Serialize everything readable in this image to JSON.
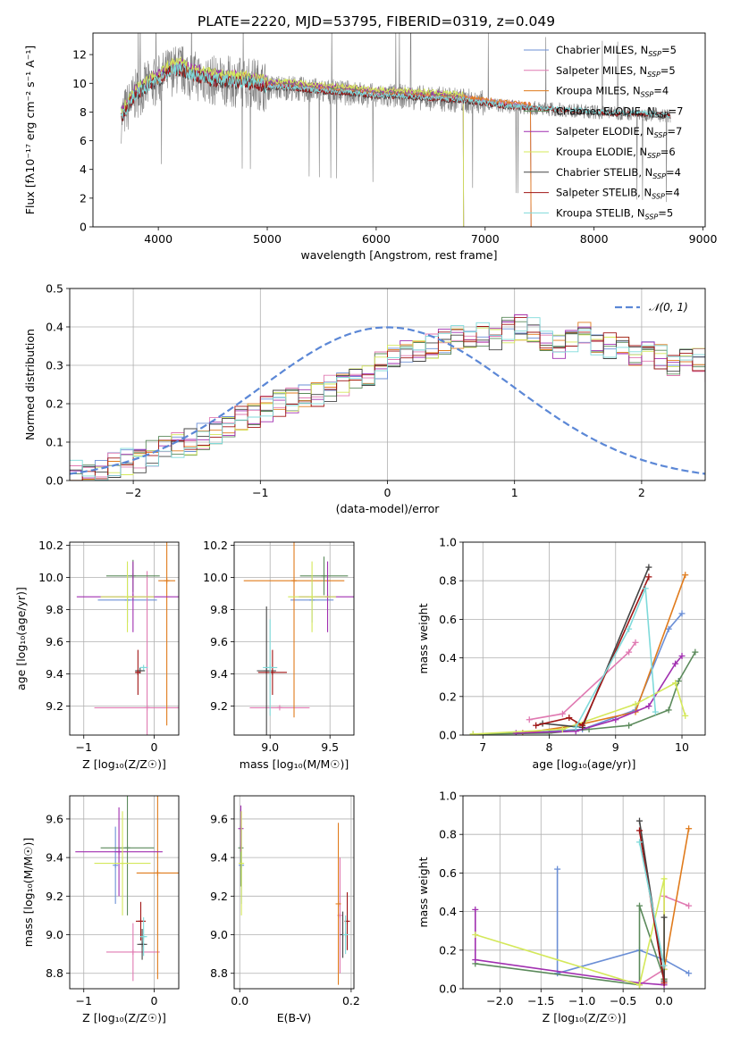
{
  "colors": {
    "Chabrier MILES": "#6b8fd6",
    "Salpeter MILES": "#e07ab2",
    "Kroupa MILES": "#e07b1c",
    "Chabrier ELODIE": "#5b8a5b",
    "Salpeter ELODIE": "#a12fb0",
    "Kroupa ELODIE": "#d4e85a",
    "Chabrier STELIB": "#444444",
    "Salpeter STELIB": "#a01515",
    "Kroupa STELIB": "#7fdada",
    "data": "#808080",
    "normal": "#5b87d6"
  },
  "chart_data": [
    {
      "type": "line",
      "title": "PLATE=2220, MJD=53795, FIBERID=0319, z=0.049",
      "xlabel": "wavelength [Angstrom, rest frame]",
      "ylabel": "Flux [fλ10⁻¹⁷ erg cm⁻² s⁻¹ A⁻¹]",
      "xlim": [
        3400,
        9020
      ],
      "ylim": [
        0,
        13.5
      ],
      "xticks": [
        4000,
        5000,
        6000,
        7000,
        8000,
        9000
      ],
      "yticks": [
        0,
        2,
        4,
        6,
        8,
        10,
        12
      ],
      "grid": false,
      "legend_position": "top-right",
      "legend": [
        {
          "label": "Chabrier MILES, N",
          "sub": "SSP",
          "eq": "=5",
          "color_key": "Chabrier MILES"
        },
        {
          "label": "Salpeter MILES, N",
          "sub": "SSP",
          "eq": "=5",
          "color_key": "Salpeter MILES"
        },
        {
          "label": "Kroupa MILES, N",
          "sub": "SSP",
          "eq": "=4",
          "color_key": "Kroupa MILES"
        },
        {
          "label": "Chabrier ELODIE, N",
          "sub": "SSP",
          "eq": "=7",
          "color_key": "Chabrier ELODIE"
        },
        {
          "label": "Salpeter ELODIE, N",
          "sub": "SSP",
          "eq": "=7",
          "color_key": "Salpeter ELODIE"
        },
        {
          "label": "Kroupa ELODIE, N",
          "sub": "SSP",
          "eq": "=6",
          "color_key": "Kroupa ELODIE"
        },
        {
          "label": "Chabrier STELIB, N",
          "sub": "SSP",
          "eq": "=4",
          "color_key": "Chabrier STELIB"
        },
        {
          "label": "Salpeter STELIB, N",
          "sub": "SSP",
          "eq": "=4",
          "color_key": "Salpeter STELIB"
        },
        {
          "label": "Kroupa STELIB, N",
          "sub": "SSP",
          "eq": "=5",
          "color_key": "Kroupa STELIB"
        }
      ],
      "data_envelope": {
        "x": [
          3660,
          3800,
          3900,
          4000,
          4100,
          4200,
          4300,
          4400,
          4500,
          4700,
          4900,
          5000,
          5200,
          5400,
          5600,
          5800,
          6000,
          6200,
          6400,
          6600,
          6800,
          7000,
          7200,
          7400,
          7600,
          7800,
          8000,
          8200,
          8400,
          8600,
          8700
        ],
        "y": [
          7.6,
          9.3,
          9.8,
          10.2,
          10.8,
          11.0,
          10.6,
          10.4,
          10.2,
          10.1,
          10.0,
          9.7,
          9.7,
          9.5,
          9.4,
          9.3,
          9.1,
          9.1,
          9.0,
          8.9,
          8.8,
          8.6,
          8.4,
          8.3,
          8.2,
          8.1,
          8.0,
          7.9,
          7.9,
          7.8,
          7.7
        ]
      },
      "model_curves": {
        "MILES": {
          "xmax": 7420,
          "offset": 0.15
        },
        "ELODIE": {
          "xmax": 6800,
          "offset": 0.35
        },
        "STELIB": {
          "xmax": 8700,
          "offset": -0.05
        }
      }
    },
    {
      "type": "histogram",
      "xlabel": "(data-model)/error",
      "ylabel": "Normed distribution",
      "xlim": [
        -2.5,
        2.5
      ],
      "ylim": [
        0,
        0.5
      ],
      "xticks": [
        -2,
        -1,
        0,
        1,
        2
      ],
      "yticks": [
        0.0,
        0.1,
        0.2,
        0.3,
        0.4,
        0.5
      ],
      "grid": true,
      "legend_position": "top-right",
      "legend_label": "𝒩(0, 1)",
      "bin_width": 0.1,
      "bin_start": -2.5,
      "base_values": [
        0.02,
        0.025,
        0.03,
        0.04,
        0.05,
        0.055,
        0.07,
        0.08,
        0.09,
        0.1,
        0.115,
        0.13,
        0.145,
        0.16,
        0.17,
        0.185,
        0.2,
        0.21,
        0.215,
        0.225,
        0.24,
        0.25,
        0.26,
        0.28,
        0.3,
        0.32,
        0.33,
        0.34,
        0.35,
        0.36,
        0.37,
        0.36,
        0.38,
        0.37,
        0.39,
        0.4,
        0.39,
        0.36,
        0.35,
        0.37,
        0.38,
        0.36,
        0.35,
        0.34,
        0.33,
        0.33,
        0.32,
        0.3,
        0.32,
        0.31,
        0.29,
        0.3,
        0.28,
        0.26,
        0.25,
        0.24,
        0.23,
        0.22,
        0.21,
        0.2,
        0.185,
        0.17,
        0.165,
        0.15,
        0.13,
        0.12,
        0.11,
        0.1,
        0.09,
        0.08,
        0.075,
        0.065,
        0.055,
        0.05,
        0.045,
        0.04,
        0.035,
        0.03,
        0.025,
        0.03
      ]
    },
    {
      "type": "errorbar",
      "xlabel": "Z [log₁₀(Z/Z☉)]",
      "ylabel": "age  [log₁₀(age/yr)]",
      "xlim": [
        -1.2,
        0.35
      ],
      "ylim": [
        9.02,
        10.22
      ],
      "xticks": [
        -1,
        0
      ],
      "yticks": [
        9.2,
        9.4,
        9.6,
        9.8,
        10.0,
        10.2
      ],
      "grid": true,
      "points": [
        {
          "m": "Chabrier MILES",
          "x": -0.38,
          "y": 9.86,
          "xerr": 0.42,
          "yerr": 0.14
        },
        {
          "m": "Salpeter MILES",
          "x": -0.1,
          "y": 9.19,
          "xerr": 0.75,
          "yerr": 0.85
        },
        {
          "m": "Kroupa MILES",
          "x": 0.18,
          "y": 9.98,
          "xerr": 0.12,
          "yerr": 0.9
        },
        {
          "m": "Chabrier ELODIE",
          "x": -0.3,
          "y": 10.01,
          "xerr": 0.38,
          "yerr": 0.1
        },
        {
          "m": "Salpeter ELODIE",
          "x": -0.3,
          "y": 9.88,
          "xerr": 0.8,
          "yerr": 0.22
        },
        {
          "m": "Kroupa ELODIE",
          "x": -0.38,
          "y": 9.88,
          "xerr": 0.38,
          "yerr": 0.22
        },
        {
          "m": "Chabrier STELIB",
          "x": -0.2,
          "y": 9.42,
          "xerr": 0.07,
          "yerr": 0.0
        },
        {
          "m": "Salpeter STELIB",
          "x": -0.23,
          "y": 9.41,
          "xerr": 0.04,
          "yerr": 0.14
        },
        {
          "m": "Kroupa STELIB",
          "x": -0.15,
          "y": 9.44,
          "xerr": 0.06,
          "yerr": 0.0
        }
      ]
    },
    {
      "type": "errorbar",
      "xlabel": "mass [log₁₀(M/M☉)]",
      "ylabel": "",
      "xlim": [
        8.7,
        9.7
      ],
      "ylim": [
        9.02,
        10.22
      ],
      "xticks": [
        9.0,
        9.5
      ],
      "yticks": [
        9.2,
        9.4,
        9.6,
        9.8,
        10.0,
        10.2
      ],
      "grid": true,
      "points": [
        {
          "m": "Chabrier MILES",
          "x": 9.35,
          "y": 9.86,
          "xerr": 0.18,
          "yerr": 0.14
        },
        {
          "m": "Salpeter MILES",
          "x": 9.08,
          "y": 9.19,
          "xerr": 0.25,
          "yerr": 0.0
        },
        {
          "m": "Kroupa MILES",
          "x": 9.2,
          "y": 9.98,
          "xerr": 0.42,
          "yerr": 0.85
        },
        {
          "m": "Chabrier ELODIE",
          "x": 9.45,
          "y": 10.01,
          "xerr": 0.2,
          "yerr": 0.12
        },
        {
          "m": "Salpeter ELODIE",
          "x": 9.48,
          "y": 9.88,
          "xerr": 0.24,
          "yerr": 0.22
        },
        {
          "m": "Kroupa ELODIE",
          "x": 9.35,
          "y": 9.88,
          "xerr": 0.2,
          "yerr": 0.22
        },
        {
          "m": "Chabrier STELIB",
          "x": 8.97,
          "y": 9.42,
          "xerr": 0.08,
          "yerr": 0.4
        },
        {
          "m": "Salpeter STELIB",
          "x": 9.02,
          "y": 9.41,
          "xerr": 0.12,
          "yerr": 0.14
        },
        {
          "m": "Kroupa STELIB",
          "x": 9.0,
          "y": 9.44,
          "xerr": 0.06,
          "yerr": 0.3
        }
      ]
    },
    {
      "type": "line",
      "xlabel": "age  [log₁₀(age/yr)]",
      "ylabel": "mass weight",
      "xlim": [
        6.7,
        10.35
      ],
      "ylim": [
        0,
        1
      ],
      "xticks": [
        7,
        8,
        9,
        10
      ],
      "yticks": [
        0.0,
        0.2,
        0.4,
        0.6,
        0.8,
        1.0
      ],
      "grid": true,
      "series": [
        {
          "m": "Chabrier MILES",
          "x": [
            7.6,
            8.5,
            9.3,
            9.8,
            10.0
          ],
          "y": [
            0.01,
            0.03,
            0.13,
            0.55,
            0.63
          ]
        },
        {
          "m": "Salpeter MILES",
          "x": [
            7.7,
            8.2,
            9.2,
            9.3
          ],
          "y": [
            0.08,
            0.11,
            0.43,
            0.48
          ]
        },
        {
          "m": "Kroupa MILES",
          "x": [
            7.6,
            8.4,
            9.3,
            10.05
          ],
          "y": [
            0.01,
            0.05,
            0.12,
            0.83
          ]
        },
        {
          "m": "Chabrier ELODIE",
          "x": [
            6.85,
            8.0,
            8.6,
            9.2,
            9.8,
            9.95,
            10.2
          ],
          "y": [
            0.005,
            0.01,
            0.03,
            0.05,
            0.13,
            0.28,
            0.43
          ]
        },
        {
          "m": "Salpeter ELODIE",
          "x": [
            7.5,
            8.4,
            9.0,
            9.5,
            9.9,
            10.0
          ],
          "y": [
            0.01,
            0.02,
            0.08,
            0.15,
            0.37,
            0.41
          ]
        },
        {
          "m": "Kroupa ELODIE",
          "x": [
            6.85,
            8.2,
            9.3,
            9.9,
            10.05
          ],
          "y": [
            0.005,
            0.03,
            0.16,
            0.27,
            0.1
          ]
        },
        {
          "m": "Chabrier STELIB",
          "x": [
            7.9,
            8.5,
            9.5
          ],
          "y": [
            0.06,
            0.04,
            0.87
          ]
        },
        {
          "m": "Salpeter STELIB",
          "x": [
            7.8,
            8.3,
            8.5,
            9.5
          ],
          "y": [
            0.05,
            0.09,
            0.05,
            0.82
          ]
        },
        {
          "m": "Kroupa STELIB",
          "x": [
            8.4,
            9.2,
            9.45,
            9.6
          ],
          "y": [
            0.04,
            0.55,
            0.76,
            0.12
          ]
        }
      ]
    },
    {
      "type": "errorbar",
      "xlabel": "Z [log₁₀(Z/Z☉)]",
      "ylabel": "mass [log₁₀(M/M☉)]",
      "xlim": [
        -1.2,
        0.35
      ],
      "ylim": [
        8.72,
        9.72
      ],
      "xticks": [
        -1,
        0
      ],
      "yticks": [
        8.8,
        9.0,
        9.2,
        9.4,
        9.6
      ],
      "grid": true,
      "points": [
        {
          "m": "Chabrier MILES",
          "x": -0.55,
          "y": 9.36,
          "xerr": 0.0,
          "yerr": 0.2
        },
        {
          "m": "Salpeter MILES",
          "x": -0.3,
          "y": 8.91,
          "xerr": 0.38,
          "yerr": 0.15
        },
        {
          "m": "Kroupa MILES",
          "x": 0.05,
          "y": 9.32,
          "xerr": 0.3,
          "yerr": 0.55
        },
        {
          "m": "Chabrier ELODIE",
          "x": -0.38,
          "y": 9.45,
          "xerr": 0.38,
          "yerr": 0.35
        },
        {
          "m": "Salpeter ELODIE",
          "x": -0.5,
          "y": 9.43,
          "xerr": 0.62,
          "yerr": 0.23
        },
        {
          "m": "Kroupa ELODIE",
          "x": -0.45,
          "y": 9.37,
          "xerr": 0.4,
          "yerr": 0.27
        },
        {
          "m": "Chabrier STELIB",
          "x": -0.17,
          "y": 8.95,
          "xerr": 0.07,
          "yerr": 0.08
        },
        {
          "m": "Salpeter STELIB",
          "x": -0.19,
          "y": 9.07,
          "xerr": 0.07,
          "yerr": 0.1
        },
        {
          "m": "Kroupa STELIB",
          "x": -0.15,
          "y": 8.99,
          "xerr": 0.05,
          "yerr": 0.1
        }
      ]
    },
    {
      "type": "errorbar",
      "xlabel": "E(B-V)",
      "ylabel": "",
      "xlim": [
        -0.01,
        0.205
      ],
      "ylim": [
        8.72,
        9.72
      ],
      "xticks": [
        0.0,
        0.2
      ],
      "yticks": [
        8.8,
        9.0,
        9.2,
        9.4,
        9.6
      ],
      "grid": true,
      "points": [
        {
          "m": "Chabrier MILES",
          "x": 0.003,
          "y": 9.36,
          "xerr": 0,
          "yerr": 0.2
        },
        {
          "m": "Salpeter MILES",
          "x": 0.18,
          "y": 9.1,
          "xerr": 0,
          "yerr": 0.3
        },
        {
          "m": "Kroupa MILES",
          "x": 0.177,
          "y": 9.16,
          "xerr": 0,
          "yerr": 0.42
        },
        {
          "m": "Chabrier ELODIE",
          "x": 0.002,
          "y": 9.45,
          "xerr": 0,
          "yerr": 0.2
        },
        {
          "m": "Salpeter ELODIE",
          "x": 0.002,
          "y": 9.55,
          "xerr": 0,
          "yerr": 0.12
        },
        {
          "m": "Kroupa ELODIE",
          "x": 0.003,
          "y": 9.37,
          "xerr": 0,
          "yerr": 0.27
        },
        {
          "m": "Chabrier STELIB",
          "x": 0.185,
          "y": 9.0,
          "xerr": 0,
          "yerr": 0.12
        },
        {
          "m": "Salpeter STELIB",
          "x": 0.193,
          "y": 9.07,
          "xerr": 0,
          "yerr": 0.15
        },
        {
          "m": "Kroupa STELIB",
          "x": 0.19,
          "y": 9.0,
          "xerr": 0,
          "yerr": 0.1
        }
      ]
    },
    {
      "type": "line",
      "xlabel": "Z [log₁₀(Z/Z☉)]",
      "ylabel": "mass weight",
      "xlim": [
        -2.45,
        0.5
      ],
      "ylim": [
        0,
        1
      ],
      "xticks": [
        -2.0,
        -1.5,
        -1.0,
        -0.5,
        0.0
      ],
      "yticks": [
        0.0,
        0.2,
        0.4,
        0.6,
        0.8,
        1.0
      ],
      "grid": true,
      "series": [
        {
          "m": "Chabrier MILES",
          "x": [
            -1.3,
            -1.3,
            -0.3,
            0.0,
            0.3
          ],
          "y": [
            0.62,
            0.08,
            0.2,
            0.15,
            0.08
          ]
        },
        {
          "m": "Salpeter MILES",
          "x": [
            -0.3,
            0.0,
            0.0,
            0.3
          ],
          "y": [
            0.02,
            0.1,
            0.48,
            0.43
          ]
        },
        {
          "m": "Kroupa MILES",
          "x": [
            0.0,
            0.0,
            0.3
          ],
          "y": [
            0.05,
            0.1,
            0.83
          ]
        },
        {
          "m": "Chabrier ELODIE",
          "x": [
            -2.3,
            -0.3,
            -0.3,
            0.0
          ],
          "y": [
            0.13,
            0.02,
            0.43,
            0.05
          ]
        },
        {
          "m": "Salpeter ELODIE",
          "x": [
            -2.3,
            -2.3,
            -0.3,
            0.0
          ],
          "y": [
            0.41,
            0.15,
            0.03,
            0.02
          ]
        },
        {
          "m": "Kroupa ELODIE",
          "x": [
            -2.3,
            -0.3,
            0.0,
            0.0
          ],
          "y": [
            0.28,
            0.02,
            0.57,
            0.1
          ]
        },
        {
          "m": "Chabrier STELIB",
          "x": [
            -0.3,
            0.0,
            0.0
          ],
          "y": [
            0.87,
            0.04,
            0.37
          ]
        },
        {
          "m": "Salpeter STELIB",
          "x": [
            -0.3,
            0.0
          ],
          "y": [
            0.82,
            0.03
          ]
        },
        {
          "m": "Kroupa STELIB",
          "x": [
            -0.3,
            0.0
          ],
          "y": [
            0.76,
            0.12
          ]
        }
      ]
    }
  ]
}
